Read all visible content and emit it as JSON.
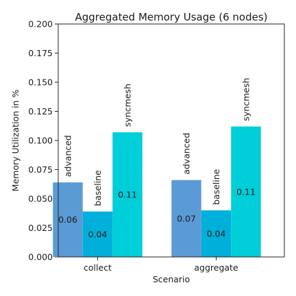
{
  "chart_data": {
    "type": "bar",
    "title": "Aggregated Memory Usage (6 nodes)",
    "xlabel": "Scenario",
    "ylabel": "Memory Utilization in %",
    "ylim": [
      0,
      0.2
    ],
    "yticks": [
      "0.000",
      "0.025",
      "0.050",
      "0.075",
      "0.100",
      "0.125",
      "0.150",
      "0.175",
      "0.200"
    ],
    "grid": false,
    "categories": [
      "collect",
      "aggregate"
    ],
    "series": [
      {
        "name": "advanced",
        "color": "#5b9bd5",
        "values": [
          0.064,
          0.066
        ],
        "labels": [
          "0.06",
          "0.07"
        ]
      },
      {
        "name": "baseline",
        "color": "#00b0da",
        "values": [
          0.039,
          0.04
        ],
        "labels": [
          "0.04",
          "0.04"
        ]
      },
      {
        "name": "syncmesh",
        "color": "#00ced8",
        "values": [
          0.107,
          0.112
        ],
        "labels": [
          "0.11",
          "0.11"
        ]
      }
    ]
  }
}
